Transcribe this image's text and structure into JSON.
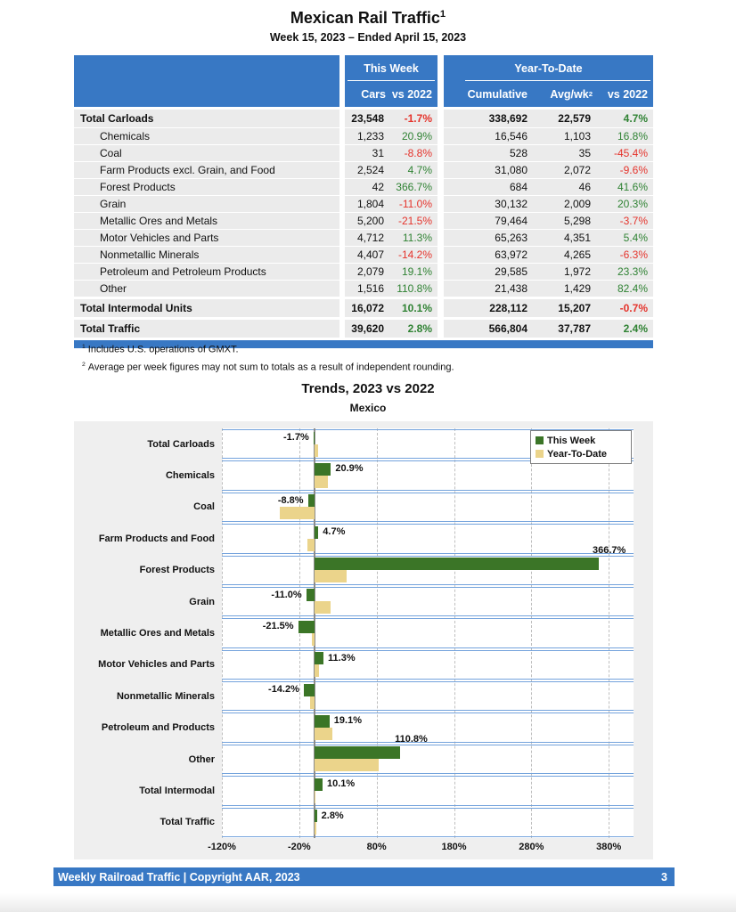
{
  "page": {
    "title": "Mexican Rail Traffic",
    "title_sup": "1",
    "subtitle": "Week 15, 2023 – Ended April 15, 2023"
  },
  "table": {
    "group_headers": {
      "this_week": "This Week",
      "ytd": "Year-To-Date"
    },
    "col_headers": {
      "cars": "Cars",
      "week_vs": "vs 2022",
      "cumulative": "Cumulative",
      "avg": "Avg/wk",
      "avg_sup": "2",
      "ytd_vs": "vs 2022"
    },
    "rows": [
      {
        "label": "Total Carloads",
        "indent": false,
        "bold": true,
        "cars": "23,548",
        "week_pct": "-1.7%",
        "cumulative": "338,692",
        "avg_wk": "22,579",
        "ytd_pct": "4.7%"
      },
      {
        "label": "Chemicals",
        "indent": true,
        "bold": false,
        "cars": "1,233",
        "week_pct": "20.9%",
        "cumulative": "16,546",
        "avg_wk": "1,103",
        "ytd_pct": "16.8%"
      },
      {
        "label": "Coal",
        "indent": true,
        "bold": false,
        "cars": "31",
        "week_pct": "-8.8%",
        "cumulative": "528",
        "avg_wk": "35",
        "ytd_pct": "-45.4%"
      },
      {
        "label": "Farm Products excl. Grain, and Food",
        "indent": true,
        "bold": false,
        "cars": "2,524",
        "week_pct": "4.7%",
        "cumulative": "31,080",
        "avg_wk": "2,072",
        "ytd_pct": "-9.6%"
      },
      {
        "label": "Forest Products",
        "indent": true,
        "bold": false,
        "cars": "42",
        "week_pct": "366.7%",
        "cumulative": "684",
        "avg_wk": "46",
        "ytd_pct": "41.6%"
      },
      {
        "label": "Grain",
        "indent": true,
        "bold": false,
        "cars": "1,804",
        "week_pct": "-11.0%",
        "cumulative": "30,132",
        "avg_wk": "2,009",
        "ytd_pct": "20.3%"
      },
      {
        "label": "Metallic Ores and Metals",
        "indent": true,
        "bold": false,
        "cars": "5,200",
        "week_pct": "-21.5%",
        "cumulative": "79,464",
        "avg_wk": "5,298",
        "ytd_pct": "-3.7%"
      },
      {
        "label": "Motor Vehicles and Parts",
        "indent": true,
        "bold": false,
        "cars": "4,712",
        "week_pct": "11.3%",
        "cumulative": "65,263",
        "avg_wk": "4,351",
        "ytd_pct": "5.4%"
      },
      {
        "label": "Nonmetallic Minerals",
        "indent": true,
        "bold": false,
        "cars": "4,407",
        "week_pct": "-14.2%",
        "cumulative": "63,972",
        "avg_wk": "4,265",
        "ytd_pct": "-6.3%"
      },
      {
        "label": "Petroleum and Petroleum Products",
        "indent": true,
        "bold": false,
        "cars": "2,079",
        "week_pct": "19.1%",
        "cumulative": "29,585",
        "avg_wk": "1,972",
        "ytd_pct": "23.3%"
      },
      {
        "label": "Other",
        "indent": true,
        "bold": false,
        "cars": "1,516",
        "week_pct": "110.8%",
        "cumulative": "21,438",
        "avg_wk": "1,429",
        "ytd_pct": "82.4%"
      },
      {
        "label": "Total Intermodal Units",
        "indent": false,
        "bold": true,
        "cars": "16,072",
        "week_pct": "10.1%",
        "cumulative": "228,112",
        "avg_wk": "15,207",
        "ytd_pct": "-0.7%"
      },
      {
        "label": "Total Traffic",
        "indent": false,
        "bold": true,
        "cars": "39,620",
        "week_pct": "2.8%",
        "cumulative": "566,804",
        "avg_wk": "37,787",
        "ytd_pct": "2.4%"
      }
    ]
  },
  "footnotes": [
    {
      "sup": "1",
      "text": "Includes U.S. operations of GMXT."
    },
    {
      "sup": "2",
      "text": "Average per week figures may not sum to totals as a result of independent rounding."
    }
  ],
  "chart": {
    "title": "Trends, 2023 vs 2022",
    "subtitle": "Mexico",
    "legend": [
      {
        "label": "This Week",
        "color": "#3B7527"
      },
      {
        "label": "Year-To-Date",
        "color": "#EBD48B"
      }
    ]
  },
  "chart_data": {
    "type": "bar",
    "orientation": "horizontal",
    "title": "Trends, 2023 vs 2022",
    "subtitle": "Mexico",
    "categories": [
      "Total Carloads",
      "Chemicals",
      "Coal",
      "Farm Products and Food",
      "Forest Products",
      "Grain",
      "Metallic Ores and Metals",
      "Motor Vehicles and Parts",
      "Nonmetallic Minerals",
      "Petroleum and Products",
      "Other",
      "Total Intermodal",
      "Total Traffic"
    ],
    "series": [
      {
        "name": "This Week",
        "values": [
          -1.7,
          20.9,
          -8.8,
          4.7,
          366.7,
          -11.0,
          -21.5,
          11.3,
          -14.2,
          19.1,
          110.8,
          10.1,
          2.8
        ]
      },
      {
        "name": "Year-To-Date",
        "values": [
          4.7,
          16.8,
          -45.4,
          -9.6,
          41.6,
          20.3,
          -3.7,
          5.4,
          -6.3,
          23.3,
          82.4,
          -0.7,
          2.4
        ]
      }
    ],
    "bar_labels": [
      "-1.7%",
      "20.9%",
      "-8.8%",
      "4.7%",
      "366.7%",
      "-11.0%",
      "-21.5%",
      "11.3%",
      "-14.2%",
      "19.1%",
      "110.8%",
      "10.1%",
      "2.8%"
    ],
    "label_above": [
      false,
      false,
      false,
      false,
      true,
      false,
      false,
      false,
      false,
      false,
      true,
      false,
      false
    ],
    "x_ticks": [
      "-120%",
      "-20%",
      "80%",
      "180%",
      "280%",
      "380%"
    ],
    "x_tick_values": [
      -120,
      -20,
      80,
      180,
      280,
      380
    ],
    "xlim": [
      -120,
      412
    ],
    "grid": "vertical-dashed",
    "legend_position": "top-right"
  },
  "footer": {
    "text": "Weekly Railroad Traffic | Copyright AAR, 2023",
    "page_number": "3"
  },
  "colors": {
    "header_blue": "#3878C4",
    "row_gray": "#EBEBEB",
    "positive_green": "#2F8233",
    "negative_red": "#E5332B",
    "bar_green": "#3B7527",
    "bar_tan": "#EBD48B",
    "chart_row_line": "#74A3DC",
    "chart_bg": "#EFEFEF",
    "zero_line_gray": "#8C8C8C"
  }
}
